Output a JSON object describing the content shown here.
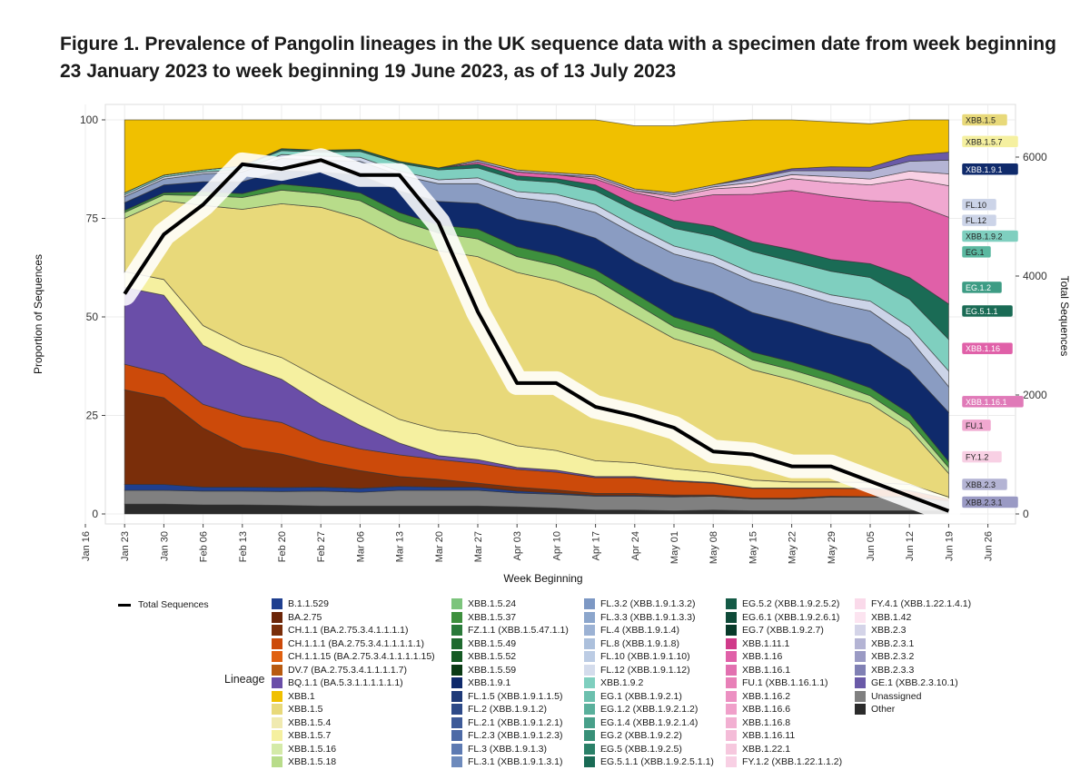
{
  "title": "Figure 1. Prevalence of Pangolin lineages in the UK sequence data with a specimen date from week beginning 23 January 2023 to week beginning 19 June 2023, as of 13 July 2023",
  "chart_data": {
    "type": "area",
    "xlabel": "Week Beginning",
    "ylabel": "Proportion of Sequences",
    "y2label": "Total Sequences",
    "ylim": [
      0,
      100
    ],
    "y2lim": [
      0,
      6500
    ],
    "yticks": [
      "0",
      "25",
      "50",
      "75",
      "100"
    ],
    "y2ticks": [
      "0",
      "2000",
      "4000",
      "6000"
    ],
    "x_ticks": [
      "Jan 16",
      "Jan 23",
      "Jan 30",
      "Feb 06",
      "Feb 13",
      "Feb 20",
      "Feb 27",
      "Mar 06",
      "Mar 13",
      "Mar 20",
      "Mar 27",
      "Apr 03",
      "Apr 10",
      "Apr 17",
      "Apr 24",
      "May 01",
      "May 08",
      "May 15",
      "May 22",
      "May 29",
      "Jun 05",
      "Jun 12",
      "Jun 19",
      "Jun 26"
    ],
    "weeks": [
      "Jan 23",
      "Jan 30",
      "Feb 06",
      "Feb 13",
      "Feb 20",
      "Feb 27",
      "Mar 06",
      "Mar 13",
      "Mar 20",
      "Mar 27",
      "Apr 03",
      "Apr 10",
      "Apr 17",
      "Apr 24",
      "May 01",
      "May 08",
      "May 15",
      "May 22",
      "May 29",
      "Jun 05",
      "Jun 12",
      "Jun 19"
    ],
    "grid": true,
    "legend_position": "bottom",
    "legend_title": "Lineage",
    "line_series": {
      "name": "Total Sequences",
      "values": [
        3700,
        4700,
        5200,
        5880,
        5800,
        5950,
        5700,
        5700,
        4900,
        3400,
        2200,
        2200,
        1800,
        1650,
        1450,
        1050,
        1000,
        800,
        800,
        550,
        300,
        50
      ]
    },
    "series": [
      {
        "name": "Other",
        "color": "#2b2b2b",
        "values": [
          2.5,
          2.5,
          2.3,
          2.3,
          2.2,
          2.0,
          2.0,
          2.0,
          2.0,
          2.0,
          1.8,
          1.5,
          1.0,
          1.0,
          0.8,
          1.0,
          0.8,
          0.8,
          0.8,
          0.8,
          0.8,
          0.8
        ]
      },
      {
        "name": "Unassigned",
        "color": "#808080",
        "values": [
          3.5,
          3.5,
          3.5,
          3.5,
          3.5,
          3.8,
          3.5,
          4.0,
          4.0,
          4.0,
          3.5,
          3.5,
          3.5,
          3.5,
          3.5,
          3.5,
          3.0,
          3.0,
          3.5,
          3.5,
          3.5,
          2.5
        ]
      },
      {
        "name": "B.1.1.529",
        "color": "#1f3f8f",
        "values": [
          1.5,
          1.5,
          1.0,
          1.0,
          1.0,
          1.0,
          1.0,
          1.0,
          0.8,
          0.8,
          0.5,
          0.3,
          0.2,
          0.2,
          0.2,
          0.0,
          0.0,
          0.0,
          0.0,
          0.0,
          0.0,
          0.0
        ]
      },
      {
        "name": "CH.1.1 / BA.2.75 / DV.7",
        "color": "#7a2e0a",
        "values": [
          24.0,
          22.0,
          15.0,
          10.0,
          8.5,
          6.0,
          4.5,
          2.5,
          2.0,
          1.0,
          1.0,
          0.8,
          0.5,
          0.5,
          0.3,
          0.3,
          0.2,
          0.2,
          0.2,
          0.1,
          0.1,
          0.0
        ]
      },
      {
        "name": "CH.1.1.1 / CH.1.1.15",
        "color": "#cc4a0a",
        "values": [
          6.5,
          6.0,
          6.0,
          8.0,
          8.0,
          6.0,
          5.5,
          5.5,
          5.0,
          5.0,
          4.5,
          4.5,
          4.0,
          4.0,
          3.5,
          3.0,
          2.5,
          2.5,
          2.0,
          2.0,
          1.5,
          0.5
        ]
      },
      {
        "name": "BQ.1.1 (BA.5.3.1.1.1.1.1.1)",
        "color": "#6a4ea8",
        "values": [
          19.5,
          20.0,
          15.0,
          13.0,
          11.0,
          9.0,
          6.0,
          3.0,
          1.0,
          1.0,
          0.5,
          0.5,
          0.3,
          0.3,
          0.2,
          0.2,
          0.1,
          0.1,
          0.1,
          0.1,
          0.1,
          0.0
        ]
      },
      {
        "name": "XBB.1.5.7",
        "color": "#f5f0a0",
        "values": [
          4.0,
          4.0,
          5.0,
          5.0,
          5.5,
          6.5,
          6.5,
          6.0,
          6.5,
          6.5,
          5.5,
          5.0,
          4.0,
          3.5,
          3.0,
          2.5,
          2.0,
          1.5,
          1.5,
          1.5,
          1.5,
          0.5
        ]
      },
      {
        "name": "XBB.1.5",
        "color": "#e8d97a",
        "values": [
          13.5,
          20.0,
          30.5,
          34.5,
          39.0,
          43.5,
          46.0,
          46.0,
          45.5,
          45.0,
          44.0,
          43.0,
          42.0,
          37.0,
          33.0,
          31.0,
          28.0,
          26.0,
          23.0,
          20.0,
          14.0,
          6.0
        ]
      },
      {
        "name": "XBB.1.5.16 / XBB.1.5.18",
        "color": "#b8dc8a",
        "values": [
          1.5,
          1.5,
          2.5,
          3.0,
          3.5,
          3.5,
          4.5,
          4.5,
          4.5,
          4.5,
          4.0,
          4.0,
          4.0,
          3.5,
          3.0,
          3.0,
          2.5,
          2.5,
          2.5,
          2.0,
          2.0,
          1.5
        ]
      },
      {
        "name": "XBB.1.5.24 / XBB.1.5.37 / XBB.1.5.49",
        "color": "#3d8f3d",
        "values": [
          0.5,
          0.5,
          1.0,
          1.0,
          1.5,
          1.5,
          2.0,
          2.0,
          2.0,
          2.5,
          2.5,
          2.5,
          2.5,
          2.5,
          2.5,
          2.5,
          2.0,
          2.0,
          2.0,
          2.0,
          2.0,
          1.5
        ]
      },
      {
        "name": "XBB.1.9.1",
        "color": "#0f2a6b",
        "values": [
          2.0,
          2.0,
          2.5,
          3.0,
          3.5,
          4.0,
          4.5,
          5.5,
          6.0,
          6.5,
          7.0,
          7.5,
          8.0,
          8.0,
          9.0,
          9.0,
          10.0,
          10.0,
          10.0,
          11.0,
          11.0,
          12.5
        ]
      },
      {
        "name": "FL.1.5 / FL.2 / FL.3 / FL.4",
        "color": "#8a9cc2",
        "values": [
          1.5,
          1.5,
          2.0,
          2.5,
          3.0,
          3.0,
          3.5,
          4.0,
          4.5,
          5.0,
          5.5,
          6.0,
          6.5,
          7.0,
          7.0,
          7.5,
          8.0,
          8.0,
          8.0,
          8.5,
          8.0,
          6.5
        ]
      },
      {
        "name": "FL.10 / FL.12",
        "color": "#ccd4e8",
        "values": [
          0.5,
          0.5,
          0.5,
          0.5,
          1.0,
          1.0,
          1.0,
          1.0,
          1.0,
          1.5,
          1.5,
          2.0,
          2.0,
          2.0,
          2.0,
          2.0,
          2.0,
          2.0,
          2.0,
          2.5,
          3.0,
          4.0
        ]
      },
      {
        "name": "XBB.1.9.2",
        "color": "#7fcfbf",
        "values": [
          0.5,
          0.5,
          0.5,
          1.0,
          1.0,
          1.0,
          1.5,
          2.0,
          2.5,
          2.5,
          3.0,
          3.0,
          3.5,
          4.0,
          4.5,
          5.0,
          5.5,
          5.5,
          6.0,
          6.0,
          7.0,
          8.0
        ]
      },
      {
        "name": "EG.1 / EG.2 / EG.5.1.1",
        "color": "#1a6b55",
        "values": [
          0.0,
          0.0,
          0.0,
          0.0,
          0.5,
          0.5,
          0.5,
          0.5,
          0.5,
          1.0,
          1.0,
          1.0,
          1.5,
          1.5,
          2.0,
          2.5,
          2.5,
          3.0,
          3.0,
          3.5,
          5.5,
          9.0
        ]
      },
      {
        "name": "XBB.1.16",
        "color": "#e060a8",
        "values": [
          0.0,
          0.0,
          0.0,
          0.0,
          0.0,
          0.0,
          0.0,
          0.0,
          0.0,
          0.5,
          1.0,
          1.0,
          1.5,
          3.0,
          5.0,
          8.0,
          12.0,
          15.0,
          16.0,
          16.0,
          19.0,
          22.0
        ]
      },
      {
        "name": "FU.1 / XBB.1.16.1",
        "color": "#f0a8d0",
        "values": [
          0.0,
          0.0,
          0.0,
          0.0,
          0.0,
          0.0,
          0.0,
          0.0,
          0.0,
          0.0,
          0.0,
          0.0,
          0.5,
          0.5,
          1.0,
          1.5,
          2.0,
          3.0,
          3.5,
          4.0,
          6.0,
          8.0
        ]
      },
      {
        "name": "FY.1.2 / XBB.1.22.1",
        "color": "#f8d0e4",
        "values": [
          0.0,
          0.0,
          0.0,
          0.0,
          0.0,
          0.0,
          0.0,
          0.0,
          0.0,
          0.0,
          0.0,
          0.0,
          0.0,
          0.0,
          0.5,
          0.5,
          1.0,
          1.0,
          1.5,
          1.5,
          2.0,
          3.0
        ]
      },
      {
        "name": "XBB.2.3",
        "color": "#b4b4d4",
        "values": [
          0.0,
          0.0,
          0.0,
          0.0,
          0.0,
          0.0,
          0.0,
          0.0,
          0.0,
          0.5,
          0.5,
          0.5,
          0.5,
          0.5,
          0.5,
          0.5,
          1.0,
          1.0,
          1.5,
          2.0,
          2.5,
          3.5
        ]
      },
      {
        "name": "GE.1 / XBB.2.3.x",
        "color": "#6a5aa8",
        "values": [
          0.0,
          0.0,
          0.0,
          0.0,
          0.0,
          0.0,
          0.0,
          0.0,
          0.0,
          0.0,
          0.0,
          0.0,
          0.0,
          0.0,
          0.0,
          0.0,
          0.5,
          0.5,
          1.0,
          1.0,
          1.5,
          2.0
        ]
      },
      {
        "name": "XBB.1",
        "color": "#f0c000",
        "values": [
          18.5,
          14.0,
          13.7,
          11.7,
          10.8,
          7.7,
          7.5,
          11.5,
          12.7,
          10.2,
          17.2,
          13.4,
          14.0,
          16.0,
          17.0,
          16.0,
          14.4,
          12.4,
          11.4,
          11.0,
          10.0,
          9.7
        ]
      }
    ],
    "right_labels": [
      {
        "text": "XBB.1.5",
        "color": "#e8d97a",
        "value": 100
      },
      {
        "text": "XBB.1.5.7",
        "color": "#f5f0a0",
        "value": 94.5
      },
      {
        "text": "XBB.1.9.1",
        "color": "#0f2a6b",
        "value": 87.5
      },
      {
        "text": "FL.10",
        "color": "#ccd4e8",
        "value": 78.5
      },
      {
        "text": "FL.12",
        "color": "#ccd4e8",
        "value": 74.5
      },
      {
        "text": "XBB.1.9.2",
        "color": "#7fcfbf",
        "value": 70.5
      },
      {
        "text": "EG.1",
        "color": "#5ab8a0",
        "value": 66.5
      },
      {
        "text": "EG.1.2",
        "color": "#3d9c84",
        "value": 57.5
      },
      {
        "text": "EG.5.1.1",
        "color": "#1a6b55",
        "value": 51.5
      },
      {
        "text": "XBB.1.16",
        "color": "#e060a8",
        "value": 42.0
      },
      {
        "text": "XBB.1.16.1",
        "color": "#e07ab8",
        "value": 28.5
      },
      {
        "text": "FU.1",
        "color": "#f0a8d0",
        "value": 22.5
      },
      {
        "text": "FY.1.2",
        "color": "#f8d0e4",
        "value": 14.5
      },
      {
        "text": "XBB.2.3",
        "color": "#b4b4d4",
        "value": 7.5
      },
      {
        "text": "XBB.2.3.1",
        "color": "#9a9ac4",
        "value": 3.0
      }
    ]
  },
  "legend": {
    "line_label": "Total Sequences",
    "columns": [
      [
        {
          "label": "B.1.1.529",
          "color": "#1f3f8f"
        },
        {
          "label": "BA.2.75",
          "color": "#6b2508"
        },
        {
          "label": "CH.1.1 (BA.2.75.3.4.1.1.1.1)",
          "color": "#7a2e0a"
        },
        {
          "label": "CH.1.1.1 (BA.2.75.3.4.1.1.1.1.1)",
          "color": "#cc4a0a"
        },
        {
          "label": "CH.1.1.15 (BA.2.75.3.4.1.1.1.1.15)",
          "color": "#e06010"
        },
        {
          "label": "DV.7 (BA.2.75.3.4.1.1.1.1.7)",
          "color": "#b85a10"
        },
        {
          "label": "BQ.1.1 (BA.5.3.1.1.1.1.1.1)",
          "color": "#6a4ea8"
        },
        {
          "label": "XBB.1",
          "color": "#f0c000"
        },
        {
          "label": "XBB.1.5",
          "color": "#e8d97a"
        },
        {
          "label": "XBB.1.5.4",
          "color": "#f0eab0"
        },
        {
          "label": "XBB.1.5.7",
          "color": "#f5f0a0"
        },
        {
          "label": "XBB.1.5.16",
          "color": "#d4eaa8"
        },
        {
          "label": "XBB.1.5.18",
          "color": "#b8dc8a"
        }
      ],
      [
        {
          "label": "XBB.1.5.24",
          "color": "#7cc47c"
        },
        {
          "label": "XBB.1.5.37",
          "color": "#3d8f3d"
        },
        {
          "label": "FZ.1.1 (XBB.1.5.47.1.1)",
          "color": "#2a7a3a"
        },
        {
          "label": "XBB.1.5.49",
          "color": "#1e6a2e"
        },
        {
          "label": "XBB.1.5.52",
          "color": "#155a24"
        },
        {
          "label": "XBB.1.5.59",
          "color": "#0a3a14"
        },
        {
          "label": "XBB.1.9.1",
          "color": "#0f2a6b"
        },
        {
          "label": "FL.1.5 (XBB.1.9.1.1.5)",
          "color": "#1f3a78"
        },
        {
          "label": "FL.2 (XBB.1.9.1.2)",
          "color": "#2e4a88"
        },
        {
          "label": "FL.2.1 (XBB.1.9.1.2.1)",
          "color": "#3d5a98"
        },
        {
          "label": "FL.2.3 (XBB.1.9.1.2.3)",
          "color": "#4d6aa6"
        },
        {
          "label": "FL.3 (XBB.1.9.1.3)",
          "color": "#5d7ab2"
        },
        {
          "label": "FL.3.1 (XBB.1.9.1.3.1)",
          "color": "#6d8abc"
        }
      ],
      [
        {
          "label": "FL.3.2 (XBB.1.9.1.3.2)",
          "color": "#7d98c4"
        },
        {
          "label": "FL.3.3 (XBB.1.9.1.3.3)",
          "color": "#8ca6cc"
        },
        {
          "label": "FL.4 (XBB.1.9.1.4)",
          "color": "#9cb2d4"
        },
        {
          "label": "FL.8 (XBB.1.9.1.8)",
          "color": "#acc0dc"
        },
        {
          "label": "FL.10 (XBB.1.9.1.10)",
          "color": "#bcccE4"
        },
        {
          "label": "FL.12 (XBB.1.9.1.12)",
          "color": "#d4dcec"
        },
        {
          "label": "XBB.1.9.2",
          "color": "#7fcfbf"
        },
        {
          "label": "EG.1 (XBB.1.9.2.1)",
          "color": "#6cc0ae"
        },
        {
          "label": "EG.1.2 (XBB.1.9.2.1.2)",
          "color": "#5ab09c"
        },
        {
          "label": "EG.1.4 (XBB.1.9.2.1.4)",
          "color": "#48a08a"
        },
        {
          "label": "EG.2 (XBB.1.9.2.2)",
          "color": "#389078"
        },
        {
          "label": "EG.5 (XBB.1.9.2.5)",
          "color": "#2a8068"
        },
        {
          "label": "EG.5.1.1 (XBB.1.9.2.5.1.1)",
          "color": "#1a6b55"
        }
      ],
      [
        {
          "label": "EG.5.2 (XBB.1.9.2.5.2)",
          "color": "#145a46"
        },
        {
          "label": "EG.6.1 (XBB.1.9.2.6.1)",
          "color": "#0e4a38"
        },
        {
          "label": "EG.7 (XBB.1.9.2.7)",
          "color": "#083a2a"
        },
        {
          "label": "XBB.1.11.1",
          "color": "#d03a8a"
        },
        {
          "label": "XBB.1.16",
          "color": "#e060a8"
        },
        {
          "label": "XBB.1.16.1",
          "color": "#e270b0"
        },
        {
          "label": "FU.1 (XBB.1.16.1.1)",
          "color": "#e880b8"
        },
        {
          "label": "XBB.1.16.2",
          "color": "#ec90c2"
        },
        {
          "label": "XBB.1.16.6",
          "color": "#f0a0ca"
        },
        {
          "label": "XBB.1.16.8",
          "color": "#f2b0d2"
        },
        {
          "label": "XBB.1.16.11",
          "color": "#f4bcd8"
        },
        {
          "label": "XBB.1.22.1",
          "color": "#f6c8de"
        },
        {
          "label": "FY.1.2 (XBB.1.22.1.1.2)",
          "color": "#f8d0e4"
        }
      ],
      [
        {
          "label": "FY.4.1 (XBB.1.22.1.4.1)",
          "color": "#fadaea"
        },
        {
          "label": "XBB.1.42",
          "color": "#fce4f0"
        },
        {
          "label": "XBB.2.3",
          "color": "#d4d4e8"
        },
        {
          "label": "XBB.2.3.1",
          "color": "#b4b4d4"
        },
        {
          "label": "XBB.2.3.2",
          "color": "#9a9ac4"
        },
        {
          "label": "XBB.2.3.3",
          "color": "#8080b4"
        },
        {
          "label": "GE.1 (XBB.2.3.10.1)",
          "color": "#6a5aa8"
        },
        {
          "label": "Unassigned",
          "color": "#808080"
        },
        {
          "label": "Other",
          "color": "#2b2b2b"
        }
      ]
    ]
  }
}
